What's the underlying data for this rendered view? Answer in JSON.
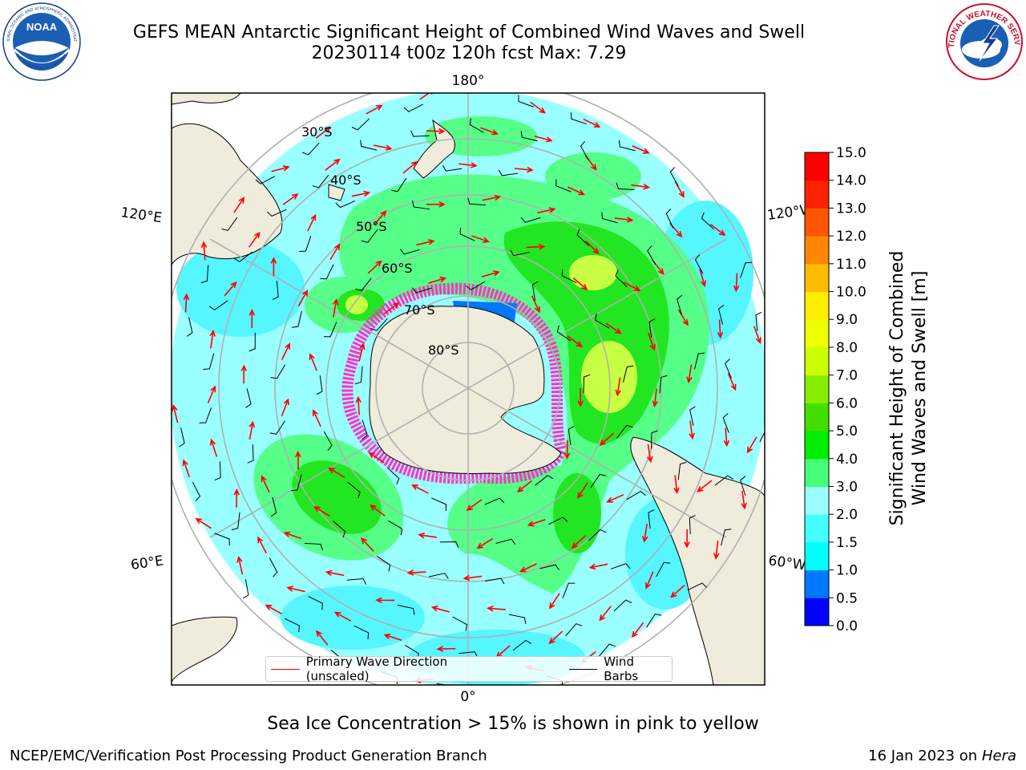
{
  "header": {
    "title_line1": "GEFS MEAN Antarctic Significant Height of Combined Wind Waves and Swell",
    "title_line2": "20230114 t00z 120h fcst   Max: 7.29"
  },
  "logos": {
    "noaa": "NOAA",
    "noaa_ring": "NATIONAL OCEANIC AND ATMOSPHERIC ADMINISTRATION",
    "noaa_ring_bottom": "U.S. DEPARTMENT OF COMMERCE",
    "nws_ring": "NATIONAL WEATHER SERVICE"
  },
  "map": {
    "projection": "south-polar-stereographic",
    "lon_labels": {
      "top": "180°",
      "bottom": "0°",
      "left_upper": "120°E",
      "left_lower": "60°E",
      "right_upper": "120°W",
      "right_lower": "60°W"
    },
    "lat_labels": [
      "30°S",
      "40°S",
      "50°S",
      "60°S",
      "70°S",
      "80°S"
    ],
    "colors": {
      "land": "#efecdc",
      "grid": "#b0b0b0",
      "wave_arrow": "#ff0000",
      "wind_barb": "#000000",
      "sea_ice": "#ff33cc"
    }
  },
  "colorbar": {
    "ticks": [
      "0.0",
      "0.5",
      "1.0",
      "1.5",
      "2.0",
      "3.0",
      "4.0",
      "5.0",
      "6.0",
      "7.0",
      "8.0",
      "9.0",
      "10.0",
      "11.0",
      "12.0",
      "13.0",
      "14.0",
      "15.0"
    ],
    "colors": [
      "#0000ff",
      "#0077ff",
      "#00ffff",
      "#44ffff",
      "#99ffff",
      "#44ff77",
      "#00ee00",
      "#44dd00",
      "#88ee00",
      "#ccff00",
      "#eeff00",
      "#ffee00",
      "#ffbb00",
      "#ff8800",
      "#ff5500",
      "#ff2200",
      "#ff0000"
    ],
    "label_line1": "Significant Height of Combined",
    "label_line2": "Wind Waves and Swell [m]"
  },
  "legend": {
    "wave_label": "Primary Wave Direction (unscaled)",
    "barb_label": "Wind Barbs"
  },
  "note": "Sea Ice Concentration > 15% is shown in pink to yellow",
  "footer": {
    "left": "NCEP/EMC/Verification Post Processing Product Generation Branch",
    "right_date": "16 Jan 2023 on ",
    "right_host": "Hera"
  }
}
